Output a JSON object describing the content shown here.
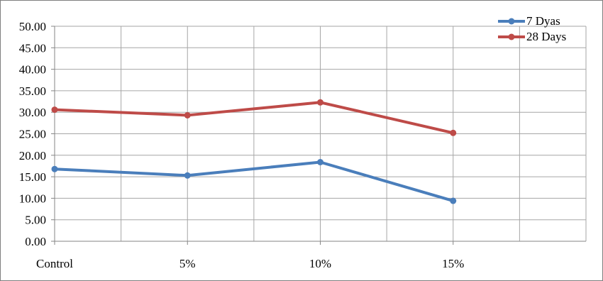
{
  "chart_data": {
    "type": "line",
    "title": "",
    "xlabel": "",
    "ylabel": "",
    "categories": [
      "Control",
      "5%",
      "10%",
      "15%"
    ],
    "series": [
      {
        "name": "7 Dyas",
        "values": [
          16.8,
          15.3,
          18.4,
          9.4
        ],
        "color": "#4a7ebb"
      },
      {
        "name": "28 Days",
        "values": [
          30.6,
          29.3,
          32.3,
          25.2
        ],
        "color": "#be4b48"
      }
    ],
    "ylim": [
      0,
      50
    ],
    "yticks": [
      "0.00",
      "5.00",
      "10.00",
      "15.00",
      "20.00",
      "25.00",
      "30.00",
      "35.00",
      "40.00",
      "45.00",
      "50.00"
    ],
    "grid": true,
    "legend_position": "top-right",
    "gridline_color": "#a6a6a6"
  }
}
